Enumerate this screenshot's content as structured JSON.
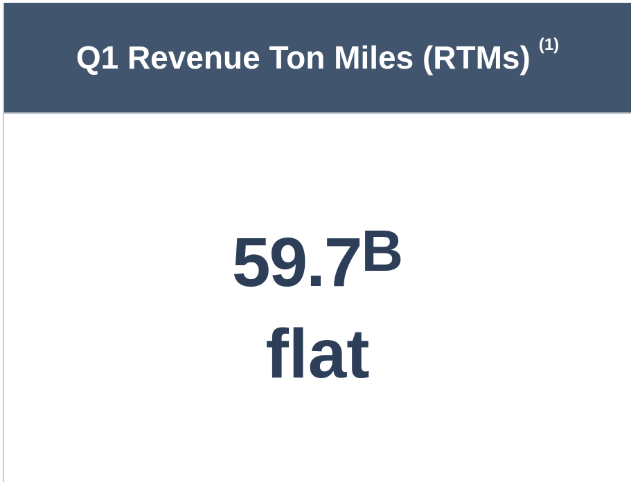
{
  "header": {
    "title": "Q1 Revenue Ton Miles (RTMs)",
    "footnote": "(1)"
  },
  "metric": {
    "value": "59.7",
    "unit": "B",
    "change": "flat"
  }
}
